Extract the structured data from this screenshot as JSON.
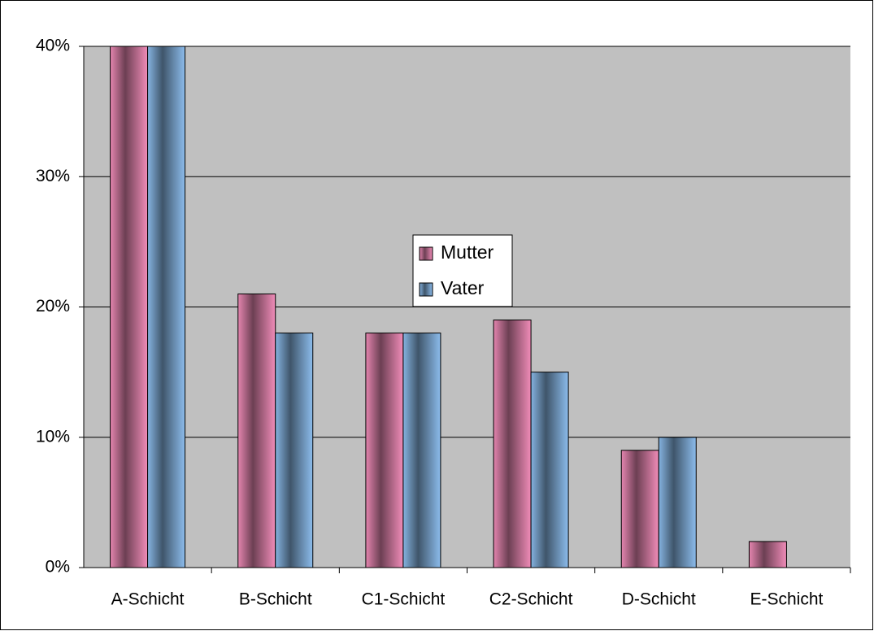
{
  "chart_data": {
    "type": "bar",
    "categories": [
      "A-Schicht",
      "B-Schicht",
      "C1-Schicht",
      "C2-Schicht",
      "D-Schicht",
      "E-Schicht"
    ],
    "series": [
      {
        "name": "Mutter",
        "color": "#f08cb8",
        "values": [
          40,
          21,
          18,
          19,
          9,
          2
        ]
      },
      {
        "name": "Vater",
        "color": "#8cbcec",
        "values": [
          40,
          18,
          18,
          15,
          10,
          0
        ]
      }
    ],
    "ylim": [
      0,
      40
    ],
    "yticks": [
      {
        "value": 0,
        "label": "0%"
      },
      {
        "value": 10,
        "label": "10%"
      },
      {
        "value": 20,
        "label": "20%"
      },
      {
        "value": 30,
        "label": "30%"
      },
      {
        "value": 40,
        "label": "40%"
      }
    ],
    "grid": true,
    "legend": "center"
  }
}
